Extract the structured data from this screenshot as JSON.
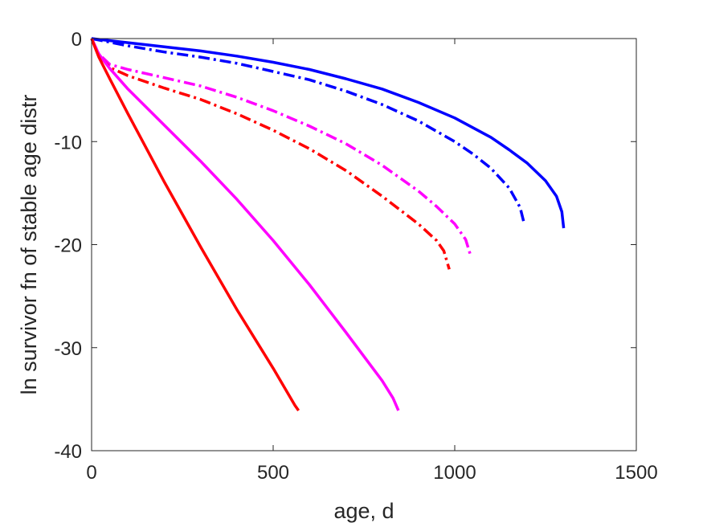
{
  "chart_data": {
    "type": "line",
    "title": "",
    "xlabel": "age, d",
    "ylabel": "ln survivor fn of stable age distr",
    "xlim": [
      0,
      1500
    ],
    "ylim": [
      -40,
      0
    ],
    "xticks": [
      0,
      500,
      1000,
      1500
    ],
    "yticks": [
      0,
      -10,
      -20,
      -30,
      -40
    ],
    "xtick_labels": [
      "0",
      "500",
      "1000",
      "1500"
    ],
    "ytick_labels": [
      "0",
      "-10",
      "-20",
      "-30",
      "-40"
    ],
    "grid": false,
    "legend": "none",
    "series": [
      {
        "color": "#0000ff",
        "style": "solid",
        "x": [
          0,
          100,
          200,
          300,
          400,
          500,
          600,
          700,
          800,
          900,
          1000,
          1100,
          1150,
          1200,
          1250,
          1280,
          1295,
          1300
        ],
        "y": [
          0,
          -0.4,
          -0.8,
          -1.2,
          -1.7,
          -2.3,
          -3.0,
          -3.9,
          -4.9,
          -6.2,
          -7.7,
          -9.6,
          -10.8,
          -12.1,
          -13.8,
          -15.3,
          -16.8,
          -18.4
        ]
      },
      {
        "color": "#0000ff",
        "style": "dashdot",
        "x": [
          0,
          100,
          200,
          300,
          400,
          500,
          600,
          700,
          800,
          900,
          1000,
          1050,
          1100,
          1150,
          1180,
          1190
        ],
        "y": [
          0,
          -0.7,
          -1.3,
          -1.8,
          -2.4,
          -3.2,
          -4.0,
          -5.1,
          -6.4,
          -8.0,
          -10.0,
          -11.2,
          -12.6,
          -14.5,
          -16.4,
          -17.8
        ]
      },
      {
        "color": "#ff00ff",
        "style": "dashdot",
        "x": [
          0,
          20,
          50,
          100,
          200,
          300,
          400,
          500,
          600,
          700,
          800,
          900,
          950,
          1000,
          1030,
          1045
        ],
        "y": [
          0,
          -1.5,
          -2.5,
          -3.0,
          -3.8,
          -4.6,
          -5.7,
          -7.0,
          -8.5,
          -10.2,
          -12.3,
          -14.8,
          -16.3,
          -18.0,
          -19.5,
          -21.2
        ]
      },
      {
        "color": "#ff0000",
        "style": "dashdot",
        "x": [
          0,
          20,
          50,
          100,
          200,
          300,
          400,
          500,
          600,
          700,
          800,
          900,
          950,
          970,
          985
        ],
        "y": [
          0,
          -1.6,
          -2.8,
          -3.6,
          -4.8,
          -5.9,
          -7.3,
          -8.9,
          -10.7,
          -12.8,
          -15.3,
          -18.0,
          -19.6,
          -20.6,
          -22.4
        ]
      },
      {
        "color": "#ff00ff",
        "style": "solid",
        "x": [
          0,
          20,
          50,
          100,
          200,
          300,
          400,
          500,
          600,
          700,
          800,
          830,
          845
        ],
        "y": [
          0,
          -1.5,
          -2.9,
          -4.9,
          -8.4,
          -11.9,
          -15.6,
          -19.6,
          -23.9,
          -28.5,
          -33.2,
          -34.9,
          -36.1
        ]
      },
      {
        "color": "#ff0000",
        "style": "solid",
        "x": [
          0,
          20,
          50,
          100,
          200,
          300,
          400,
          500,
          560,
          570
        ],
        "y": [
          0,
          -1.8,
          -3.9,
          -7.3,
          -13.9,
          -20.2,
          -26.3,
          -32.0,
          -35.6,
          -36.1
        ]
      }
    ]
  }
}
